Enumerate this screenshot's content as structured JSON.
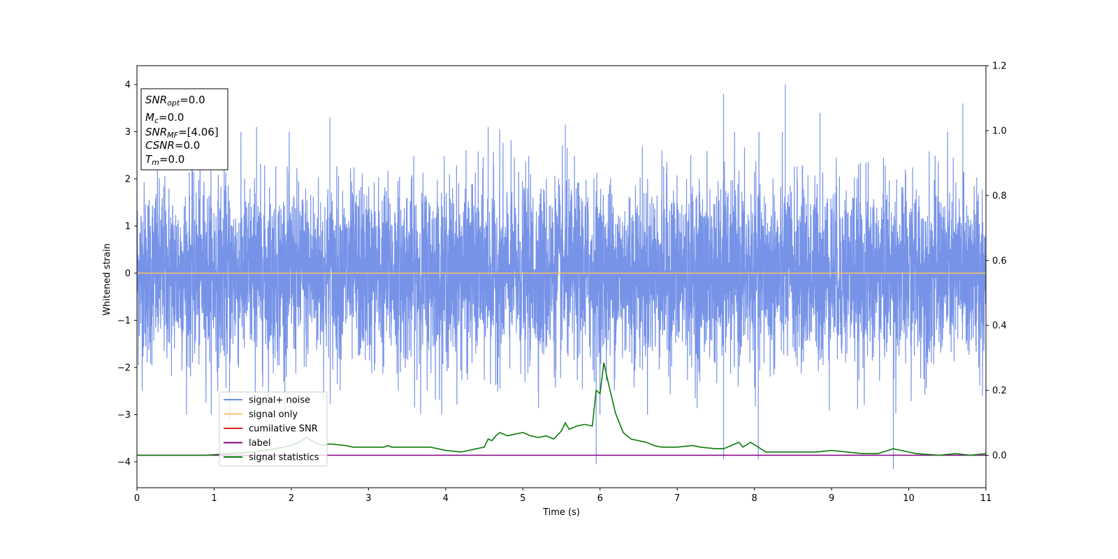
{
  "chart_data": {
    "type": "line",
    "title": "",
    "xlabel": "Time (s)",
    "ylabel": "Whitened strain",
    "y2label": "",
    "xlim": [
      0,
      11
    ],
    "ylim": [
      -4.55,
      4.4
    ],
    "y2lim": [
      -0.1,
      1.2
    ],
    "xticks": [
      0,
      1,
      2,
      3,
      4,
      5,
      6,
      7,
      8,
      9,
      10,
      11
    ],
    "yticks": [
      -4,
      -3,
      -2,
      -1,
      0,
      1,
      2,
      3,
      4
    ],
    "y2ticks": [
      0.0,
      0.2,
      0.4,
      0.6,
      0.8,
      1.0,
      1.2
    ],
    "xtick_labels": [
      "0",
      "1",
      "2",
      "3",
      "4",
      "5",
      "6",
      "7",
      "8",
      "9",
      "10",
      "11"
    ],
    "ytick_labels": [
      "−4",
      "−3",
      "−2",
      "−1",
      "0",
      "1",
      "2",
      "3",
      "4"
    ],
    "y2tick_labels": [
      "0.0",
      "0.2",
      "0.4",
      "0.6",
      "0.8",
      "1.0",
      "1.2"
    ],
    "grid": false,
    "legend_position": "lower-left",
    "legend": [
      {
        "name": "signal+ noise",
        "color": "#6b8ae6"
      },
      {
        "name": "signal only",
        "color": "#f5c26b"
      },
      {
        "name": "cumilative SNR",
        "color": "#e02020"
      },
      {
        "name": "label",
        "color": "#800080"
      },
      {
        "name": "signal statistics",
        "color": "#0a7a0a"
      }
    ],
    "annotation": {
      "lines": [
        {
          "base": "SNR",
          "sub": "opt",
          "value": "=0.0"
        },
        {
          "base": "M",
          "sub": "c",
          "value": "=0.0"
        },
        {
          "base": "SNR",
          "sub": "MF",
          "value": "=[4.06]"
        },
        {
          "base": "CSNR",
          "sub": "",
          "value": "=0.0"
        },
        {
          "base": "T",
          "sub": "m",
          "value": "=0.0"
        }
      ]
    },
    "series": [
      {
        "name": "signal+ noise",
        "axis": "left",
        "color": "#6b8ae6",
        "description_note": "dense whitened noise, amplitude roughly between -3 and 3",
        "amplitude_range": [
          -4.1,
          4.0
        ],
        "spikes": [
          [
            1.2,
            -3.1
          ],
          [
            1.55,
            3.1
          ],
          [
            2.5,
            3.3
          ],
          [
            4.55,
            3.1
          ],
          [
            4.7,
            3.05
          ],
          [
            5.55,
            3.15
          ],
          [
            5.95,
            -4.05
          ],
          [
            7.6,
            3.8
          ],
          [
            7.6,
            -3.95
          ],
          [
            8.05,
            -3.95
          ],
          [
            8.4,
            4.0
          ],
          [
            8.85,
            3.4
          ],
          [
            9.8,
            -4.15
          ],
          [
            10.7,
            3.6
          ]
        ]
      },
      {
        "name": "signal only",
        "axis": "left",
        "color": "#f5c26b",
        "x": [
          0,
          11
        ],
        "y": [
          0,
          0
        ]
      },
      {
        "name": "label",
        "axis": "right",
        "color": "#800080",
        "x": [
          0,
          11
        ],
        "y": [
          0,
          0
        ]
      },
      {
        "name": "signal statistics",
        "axis": "right",
        "color": "#0a7a0a",
        "x": [
          0,
          0.3,
          0.6,
          0.9,
          1.2,
          1.5,
          1.8,
          2.0,
          2.1,
          2.2,
          2.3,
          2.4,
          2.5,
          2.7,
          2.8,
          3.0,
          3.2,
          3.25,
          3.3,
          3.5,
          3.7,
          3.8,
          3.9,
          4.0,
          4.2,
          4.4,
          4.5,
          4.55,
          4.6,
          4.65,
          4.7,
          4.75,
          4.8,
          4.9,
          5.0,
          5.1,
          5.2,
          5.3,
          5.4,
          5.5,
          5.55,
          5.6,
          5.7,
          5.8,
          5.9,
          5.95,
          6.0,
          6.05,
          6.1,
          6.2,
          6.3,
          6.4,
          6.5,
          6.6,
          6.7,
          6.8,
          7.0,
          7.2,
          7.3,
          7.5,
          7.6,
          7.7,
          7.8,
          7.85,
          7.95,
          8.05,
          8.15,
          8.3,
          8.6,
          8.8,
          9.0,
          9.2,
          9.4,
          9.6,
          9.8,
          9.9,
          10.1,
          10.4,
          10.6,
          10.8,
          11
        ],
        "y": [
          0.0,
          0.0,
          0.0,
          0.0,
          0.005,
          0.01,
          0.02,
          0.03,
          0.04,
          0.055,
          0.04,
          0.03,
          0.035,
          0.03,
          0.025,
          0.025,
          0.025,
          0.03,
          0.025,
          0.025,
          0.025,
          0.025,
          0.02,
          0.015,
          0.01,
          0.02,
          0.025,
          0.05,
          0.045,
          0.06,
          0.07,
          0.065,
          0.06,
          0.065,
          0.07,
          0.06,
          0.055,
          0.06,
          0.05,
          0.075,
          0.1,
          0.08,
          0.09,
          0.095,
          0.09,
          0.2,
          0.19,
          0.285,
          0.23,
          0.13,
          0.07,
          0.05,
          0.045,
          0.04,
          0.03,
          0.025,
          0.025,
          0.03,
          0.025,
          0.02,
          0.02,
          0.03,
          0.04,
          0.025,
          0.04,
          0.025,
          0.01,
          0.01,
          0.01,
          0.01,
          0.015,
          0.01,
          0.005,
          0.005,
          0.02,
          0.015,
          0.005,
          0.0,
          0.005,
          0.0,
          0.005
        ]
      }
    ]
  }
}
